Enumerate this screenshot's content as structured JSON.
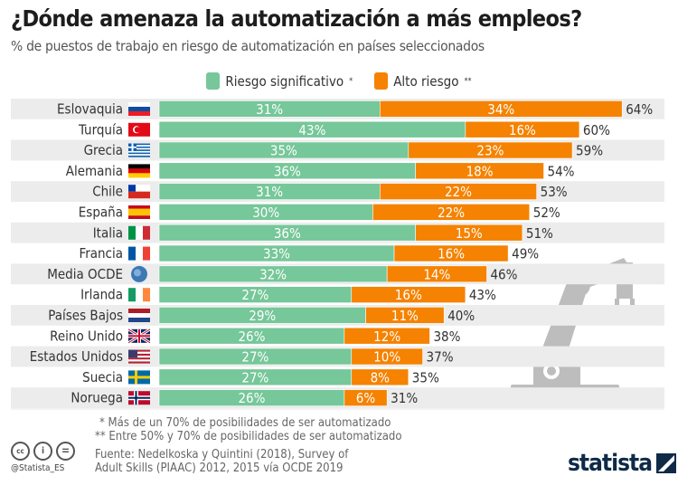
{
  "title": "¿Dónde amenaza la automatización a más empleos?",
  "subtitle": "% de puestos de trabajo en riesgo de automatización en países seleccionados",
  "chart_data": {
    "type": "bar",
    "stacked": true,
    "orientation": "horizontal",
    "categories": [
      "Eslovaquia",
      "Turquía",
      "Grecia",
      "Alemania",
      "Chile",
      "España",
      "Italia",
      "Francia",
      "Media OCDE",
      "Irlanda",
      "Países Bajos",
      "Reino Unido",
      "Estados Unidos",
      "Suecia",
      "Noruega"
    ],
    "series": [
      {
        "name": "Riesgo significativo",
        "marker": "*",
        "color": "#76c799",
        "values": [
          31,
          43,
          35,
          36,
          31,
          30,
          36,
          33,
          32,
          27,
          29,
          26,
          27,
          27,
          26
        ]
      },
      {
        "name": "Alto riesgo",
        "marker": "**",
        "color": "#f58200",
        "values": [
          34,
          16,
          23,
          18,
          22,
          22,
          15,
          16,
          14,
          16,
          11,
          12,
          10,
          8,
          6
        ]
      }
    ],
    "totals": [
      64,
      60,
      59,
      54,
      53,
      52,
      51,
      49,
      46,
      43,
      40,
      38,
      37,
      35,
      31
    ],
    "value_suffix": "%",
    "legend": "top-center",
    "grid": false
  },
  "notes": [
    "*   Más de un 70% de posibilidades de ser automatizado",
    "** Entre 50% y 70% de posibilidades de ser automatizado"
  ],
  "source": [
    "Fuente: Nedelkoska y Quintini (2018), Survey of",
    "Adult Skills (PIAAC) 2012, 2015 vía OCDE 2019"
  ],
  "license": {
    "icons": [
      "cc",
      "by",
      "nd"
    ],
    "handle": "@Statista_ES"
  },
  "brand": "statista"
}
